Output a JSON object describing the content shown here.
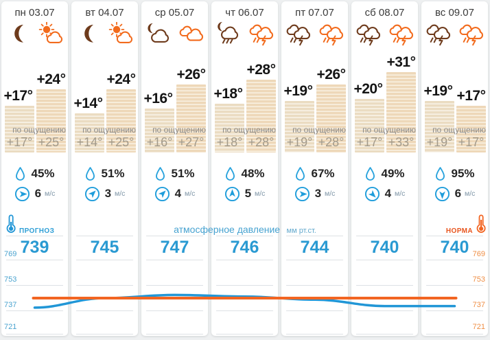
{
  "colors": {
    "accent_blue": "#2196d6",
    "accent_orange": "#f26522",
    "night_icon": "#6e3b1c",
    "day_icon": "#f26b1d",
    "bar_night": "#ebdcc2",
    "bar_day": "#eed8b9"
  },
  "labels": {
    "feels": "по ощущению",
    "wind_unit": "м/с"
  },
  "pressure_section": {
    "forecast_label": "ПРОГНОЗ",
    "norm_label": "НОРМА",
    "title": "атмосферное давление",
    "units": "мм рт.ст.",
    "axis": [
      "769",
      "753",
      "737",
      "721"
    ]
  },
  "days": [
    {
      "label": "пн 03.07",
      "night": {
        "icon": "moon",
        "t": 17,
        "temp": "+17°",
        "feels": "+17°"
      },
      "day": {
        "icon": "sun-cloud",
        "t": 24,
        "temp": "+24°",
        "feels": "+25°"
      },
      "humidity": "45%",
      "wind": {
        "speed": "6",
        "deg": 90
      },
      "pressure": "739"
    },
    {
      "label": "вт 04.07",
      "night": {
        "icon": "moon",
        "t": 14,
        "temp": "+14°",
        "feels": "+14°"
      },
      "day": {
        "icon": "sun-cloud",
        "t": 24,
        "temp": "+24°",
        "feels": "+25°"
      },
      "humidity": "51%",
      "wind": {
        "speed": "3",
        "deg": 45
      },
      "pressure": "745"
    },
    {
      "label": "ср 05.07",
      "night": {
        "icon": "moon-cloud",
        "t": 16,
        "temp": "+16°",
        "feels": "+16°"
      },
      "day": {
        "icon": "cloudy",
        "t": 26,
        "temp": "+26°",
        "feels": "+27°"
      },
      "humidity": "51%",
      "wind": {
        "speed": "4",
        "deg": 45
      },
      "pressure": "747"
    },
    {
      "label": "чт 06.07",
      "night": {
        "icon": "moon-rain",
        "t": 18,
        "temp": "+18°",
        "feels": "+18°"
      },
      "day": {
        "icon": "storm",
        "t": 28,
        "temp": "+28°",
        "feels": "+28°"
      },
      "humidity": "48%",
      "wind": {
        "speed": "5",
        "deg": 0
      },
      "pressure": "746"
    },
    {
      "label": "пт 07.07",
      "night": {
        "icon": "storm",
        "t": 19,
        "temp": "+19°",
        "feels": "+19°"
      },
      "day": {
        "icon": "storm",
        "t": 26,
        "temp": "+26°",
        "feels": "+28°"
      },
      "humidity": "67%",
      "wind": {
        "speed": "3",
        "deg": 90
      },
      "pressure": "744"
    },
    {
      "label": "сб 08.07",
      "night": {
        "icon": "storm",
        "t": 20,
        "temp": "+20°",
        "feels": "+17°"
      },
      "day": {
        "icon": "storm",
        "t": 31,
        "temp": "+31°",
        "feels": "+33°"
      },
      "humidity": "49%",
      "wind": {
        "speed": "4",
        "deg": 135
      },
      "pressure": "740"
    },
    {
      "label": "вс 09.07",
      "night": {
        "icon": "storm",
        "t": 19,
        "temp": "+19°",
        "feels": "+19°"
      },
      "day": {
        "icon": "storm",
        "t": 17,
        "temp": "+17°",
        "feels": "+17°"
      },
      "humidity": "95%",
      "wind": {
        "speed": "6",
        "deg": 180
      },
      "pressure": "740"
    }
  ],
  "chart_data": {
    "type": "line",
    "title": "атмосферное давление",
    "units": "мм рт.ст.",
    "x_labels": [
      "пн 03.07",
      "вт 04.07",
      "ср 05.07",
      "чт 06.07",
      "пт 07.07",
      "сб 08.07",
      "вс 09.07"
    ],
    "y_ticks": [
      769,
      753,
      737,
      721
    ],
    "ylim": [
      717,
      773
    ],
    "grid": true,
    "series": [
      {
        "name": "прогноз",
        "color": "#2196d6",
        "values": [
          739,
          745,
          747,
          746,
          744,
          740,
          740
        ]
      },
      {
        "name": "норма",
        "color": "#f26522",
        "values": [
          745,
          745,
          745,
          745,
          745,
          745,
          745
        ]
      }
    ]
  }
}
